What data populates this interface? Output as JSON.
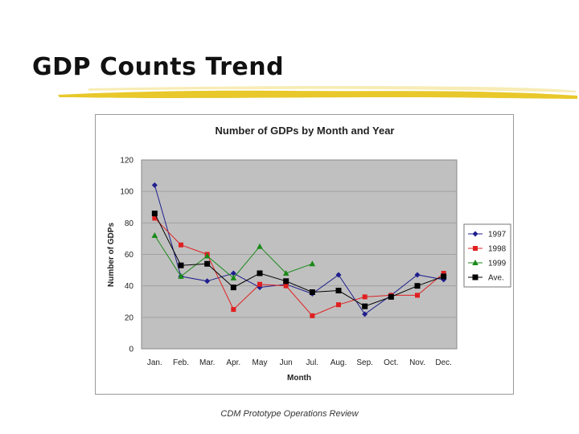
{
  "slide": {
    "title": "GDP Counts Trend",
    "footer": "CDM Prototype Operations Review"
  },
  "colors": {
    "underline": "#e8c82a",
    "plot_bg": "#c0c0c0",
    "gridline": "#a0a0a0"
  },
  "chart_data": {
    "type": "line",
    "title": "Number of GDPs by Month and Year",
    "xlabel": "Month",
    "ylabel": "Number of GDPs",
    "ylim": [
      0,
      120
    ],
    "yticks": [
      0,
      20,
      40,
      60,
      80,
      100,
      120
    ],
    "grid": true,
    "legend_position": "right",
    "categories": [
      "Jan.",
      "Feb.",
      "Mar.",
      "Apr.",
      "May",
      "Jun",
      "Jul.",
      "Aug.",
      "Sep.",
      "Oct.",
      "Nov.",
      "Dec."
    ],
    "series": [
      {
        "name": "1997",
        "color": "#1f1f8f",
        "marker": "diamond",
        "values": [
          104,
          46,
          43,
          48,
          39,
          41,
          35,
          47,
          22,
          34,
          47,
          44
        ]
      },
      {
        "name": "1998",
        "color": "#e02020",
        "marker": "square",
        "values": [
          83,
          66,
          60,
          25,
          41,
          40,
          21,
          28,
          33,
          34,
          34,
          48
        ]
      },
      {
        "name": "1999",
        "color": "#1a8a1a",
        "marker": "triangle",
        "values": [
          72,
          46,
          59,
          45,
          65,
          48,
          54,
          null,
          null,
          null,
          null,
          null
        ]
      },
      {
        "name": "Ave.",
        "color": "#000000",
        "marker": "square-large",
        "values": [
          86,
          53,
          54,
          39,
          48,
          43,
          36,
          37,
          27,
          33,
          40,
          46
        ]
      }
    ]
  }
}
